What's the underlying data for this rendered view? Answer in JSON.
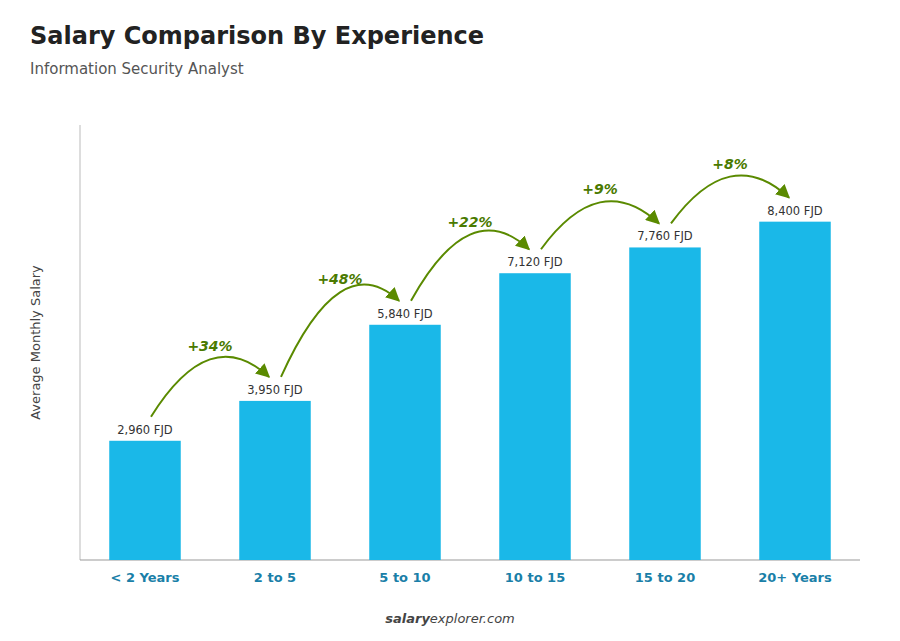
{
  "chart_data": {
    "type": "bar",
    "title": "Salary Comparison By Experience",
    "subtitle": "Information Security Analyst",
    "ylabel": "Average Monthly Salary",
    "categories": [
      "< 2 Years",
      "2 to 5",
      "5 to 10",
      "10 to 15",
      "15 to 20",
      "20+ Years"
    ],
    "values": [
      2960,
      3950,
      5840,
      7120,
      7760,
      8400
    ],
    "value_labels": [
      "2,960 FJD",
      "3,950 FJD",
      "5,840 FJD",
      "7,120 FJD",
      "7,760 FJD",
      "8,400 FJD"
    ],
    "data_labels": true,
    "annotations": [
      "+34%",
      "+48%",
      "+22%",
      "+9%",
      "+8%"
    ],
    "footer": [
      "salary",
      "explorer.com"
    ],
    "color": "#1ab8e8",
    "ylim": [
      0,
      10800
    ],
    "yticks": [],
    "grid": false,
    "tick_labels": "x"
  }
}
